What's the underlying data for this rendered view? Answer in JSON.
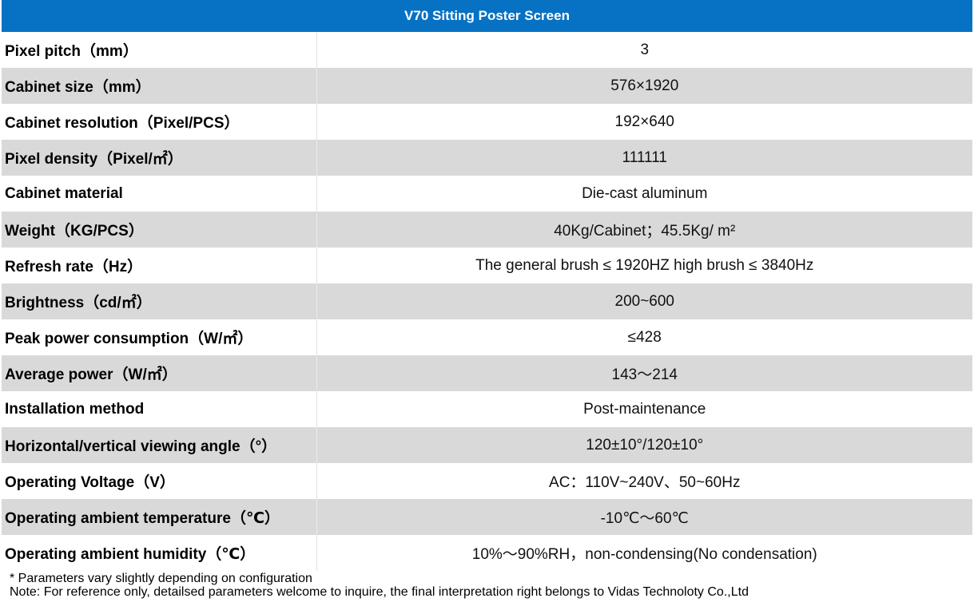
{
  "table": {
    "title": "V70 Sitting Poster Screen",
    "rows": [
      {
        "label": "Pixel pitch（mm）",
        "value": "3"
      },
      {
        "label": "Cabinet size（mm）",
        "value": "576×1920"
      },
      {
        "label": "Cabinet resolution（Pixel/PCS）",
        "value": "192×640"
      },
      {
        "label": "Pixel density（Pixel/㎡）",
        "value": "111111"
      },
      {
        "label": "Cabinet material",
        "value": "Die-cast aluminum"
      },
      {
        "label": "Weight（KG/PCS）",
        "value": "40Kg/Cabinet；45.5Kg/ m²"
      },
      {
        "label": "Refresh rate（Hz）",
        "value": "The general brush ≤ 1920HZ high brush ≤ 3840Hz"
      },
      {
        "label": "Brightness（cd/㎡）",
        "value": "200~600"
      },
      {
        "label": "Peak power consumption（W/㎡）",
        "value": "≤428"
      },
      {
        "label": "Average power（W/㎡）",
        "value": "143～214"
      },
      {
        "label": "Installation method",
        "value": "Post-maintenance"
      },
      {
        "label": "Horizontal/vertical viewing angle（°）",
        "value": "120±10°/120±10°"
      },
      {
        "label": "Operating Voltage（V）",
        "value": "AC：110V~240V、50~60Hz"
      },
      {
        "label": "Operating ambient temperature（℃）",
        "value": "-10℃～60℃"
      },
      {
        "label": "Operating ambient humidity（℃）",
        "value": "10%～90%RH，non-condensing(No condensation)"
      }
    ]
  },
  "notes": {
    "line1": "* Parameters vary slightly depending on configuration",
    "line2": "Note: For reference only, detailsed parameters welcome to inquire, the final interpretation right belongs to Vidas Technoloty Co.,Ltd"
  },
  "colors": {
    "header_bg": "#0772c4",
    "row_alt_bg": "#d9d9d9"
  }
}
